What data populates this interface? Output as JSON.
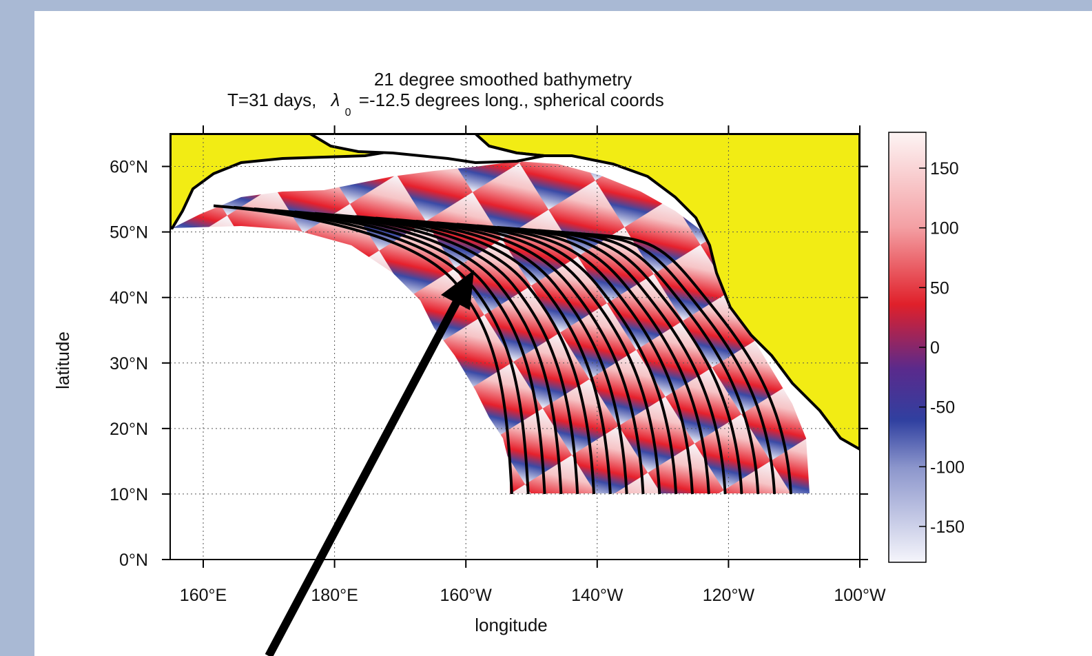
{
  "chart_data": {
    "type": "heatmap",
    "title_line1": "21 degree smoothed bathymetry",
    "title_line2_prefix": "T=31 days,",
    "title_lambda": "λ",
    "title_lambda_sub": "0",
    "title_line2_suffix": "=-12.5 degrees long.,  spherical coords",
    "xlabel": "longitude",
    "ylabel": "latitude",
    "x_ticks": [
      "160°E",
      "180°E",
      "160°W",
      "140°W",
      "120°W",
      "100°W"
    ],
    "y_ticks": [
      "0°N",
      "10°N",
      "20°N",
      "30°N",
      "40°N",
      "50°N",
      "60°N"
    ],
    "xlim_deg_east": [
      155,
      260
    ],
    "ylim": [
      0,
      65
    ],
    "grid": true,
    "colorbar": {
      "ticks": [
        "150",
        "100",
        "50",
        "0",
        "-50",
        "-100",
        "-150"
      ],
      "range": [
        -180,
        180
      ],
      "colors": [
        "#f5f5fb",
        "#5d6ab8",
        "#3040a0",
        "#5a2a8c",
        "#e0202a",
        "#f4a0a4",
        "#fdf4f4"
      ]
    },
    "land_color": "#f2ec14",
    "ray_start_latitude": 10,
    "ray_start_longitudes_deg_east": [
      207,
      209.5,
      212,
      214.5,
      217,
      219.5,
      222,
      224.5,
      227,
      229.5,
      232,
      234.5,
      237,
      239.5,
      242,
      244.5,
      247,
      249.5
    ]
  }
}
